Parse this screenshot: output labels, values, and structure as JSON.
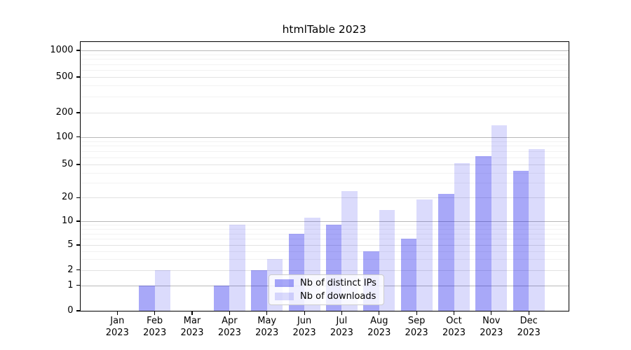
{
  "chart_data": {
    "type": "bar",
    "title": "htmlTable 2023",
    "yscale": "log-like (custom ticks, zero baseline)",
    "grid": "on",
    "legend_position": "lower center",
    "categories": [
      {
        "month": "Jan",
        "year": "2023"
      },
      {
        "month": "Feb",
        "year": "2023"
      },
      {
        "month": "Mar",
        "year": "2023"
      },
      {
        "month": "Apr",
        "year": "2023"
      },
      {
        "month": "May",
        "year": "2023"
      },
      {
        "month": "Jun",
        "year": "2023"
      },
      {
        "month": "Jul",
        "year": "2023"
      },
      {
        "month": "Aug",
        "year": "2023"
      },
      {
        "month": "Sep",
        "year": "2023"
      },
      {
        "month": "Oct",
        "year": "2023"
      },
      {
        "month": "Nov",
        "year": "2023"
      },
      {
        "month": "Dec",
        "year": "2023"
      }
    ],
    "series": [
      {
        "name": "Nb of distinct IPs",
        "color": "rgba(0,0,235,0.34)",
        "values": [
          0,
          1,
          0,
          1,
          2,
          7,
          9,
          4,
          6,
          22,
          62,
          42
        ]
      },
      {
        "name": "Nb of downloads",
        "color": "rgba(0,0,235,0.14)",
        "values": [
          0,
          2,
          0,
          9,
          3,
          11,
          24,
          14,
          19,
          52,
          140,
          74
        ]
      }
    ],
    "y_ticks": [
      0,
      1,
      2,
      5,
      10,
      20,
      50,
      100,
      200,
      500,
      1000
    ],
    "y_minor_ticks": [
      3,
      4,
      6,
      7,
      8,
      9,
      30,
      40,
      60,
      70,
      80,
      90,
      300,
      400,
      600,
      700,
      800,
      900
    ],
    "y_major_grid_values": [
      1,
      10,
      100,
      1000
    ],
    "axis_color": "#000000",
    "grid_minor_color": "#f2f2f2",
    "grid_mid_color": "#e2e2e2",
    "grid_major_color": "#b9b9b9"
  }
}
